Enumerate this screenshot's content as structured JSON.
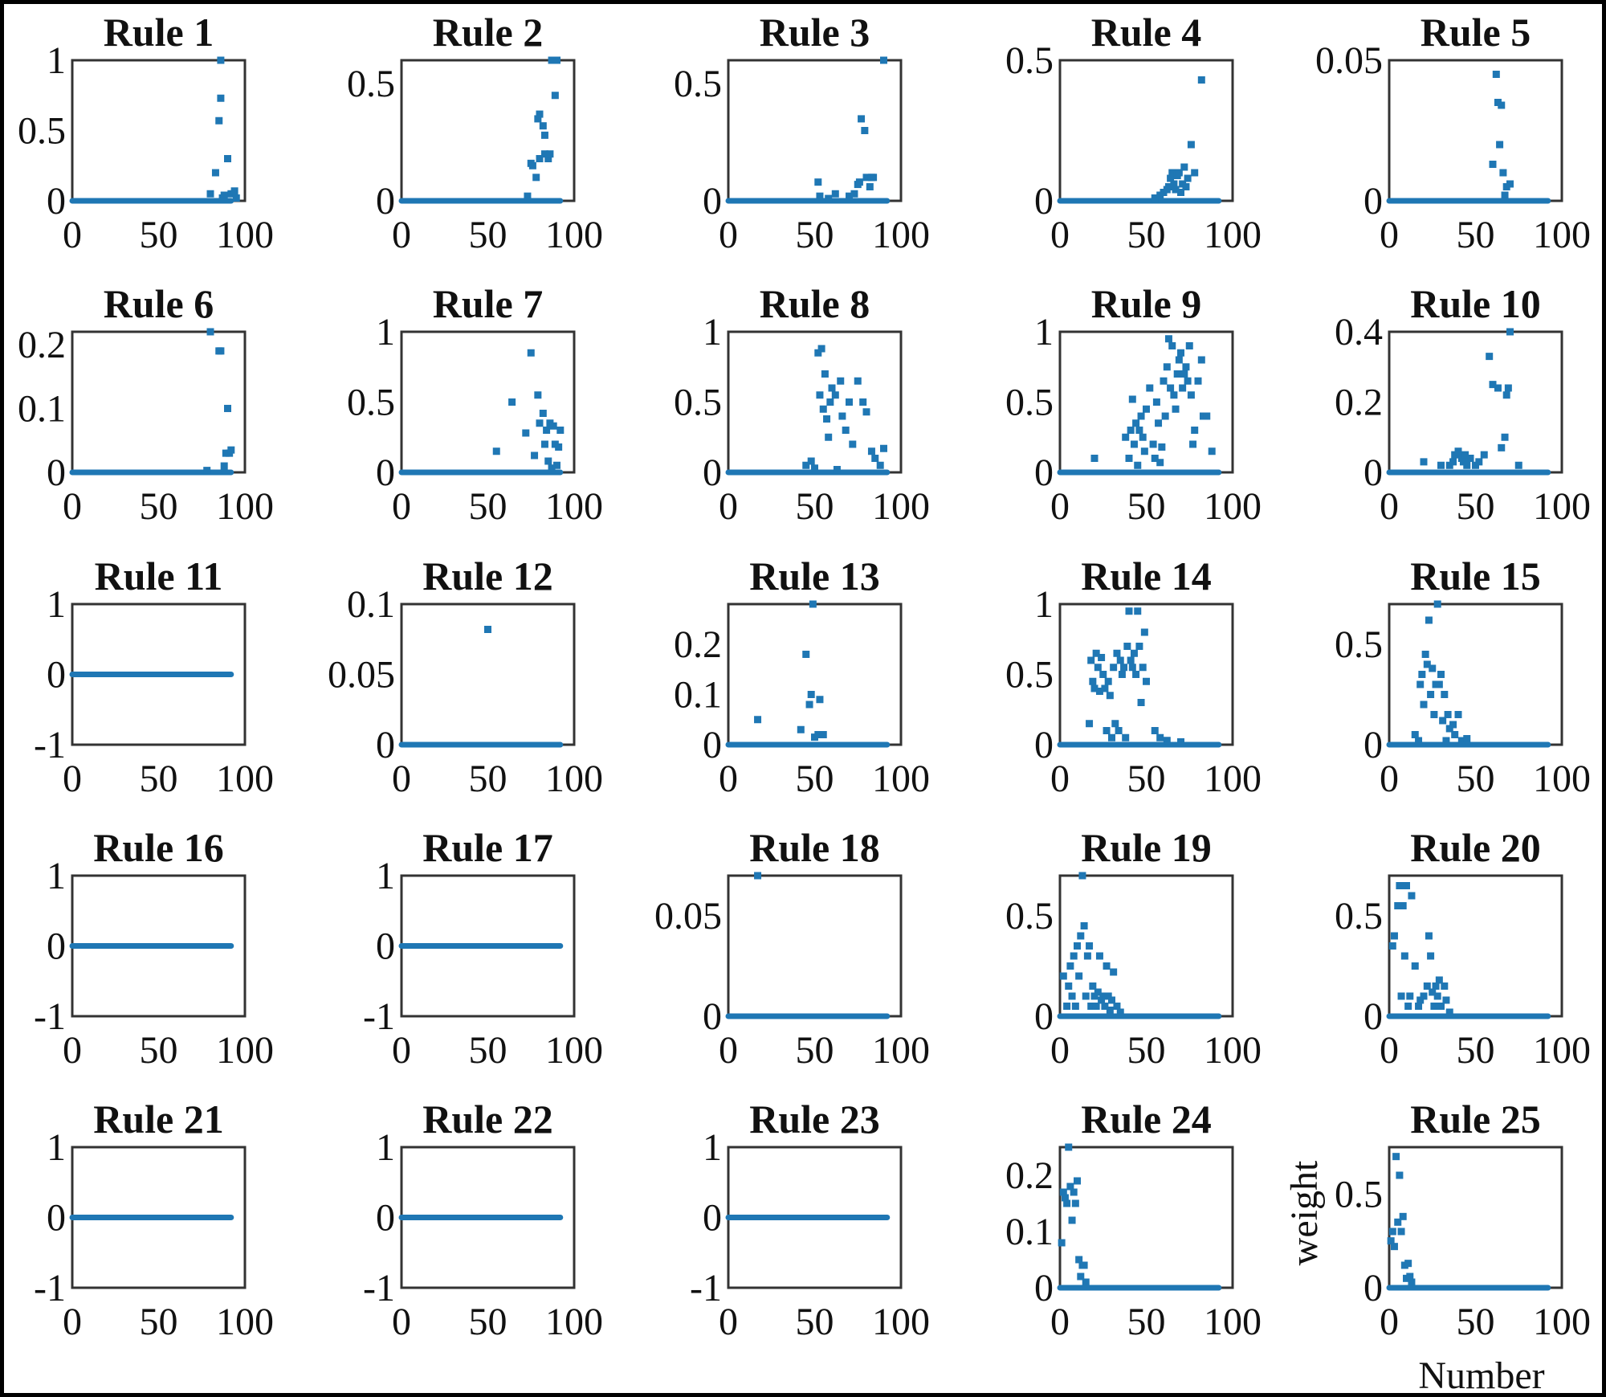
{
  "chart_data": {
    "type": "scatter",
    "layout": "5x5 small multiples",
    "xlabel": "Number",
    "ylabel": "weight",
    "marker_color": "#1f77b4",
    "xlim": [
      0,
      100
    ],
    "xticks": [
      "0",
      "50",
      "100"
    ],
    "panels": [
      {
        "title": "Rule 1",
        "ylim": [
          0,
          1
        ],
        "yticks": [
          {
            "v": 0,
            "t": "0"
          },
          {
            "v": 0.5,
            "t": "0.5"
          },
          {
            "v": 1,
            "t": "1"
          }
        ],
        "x": [
          80,
          83,
          85,
          86,
          86,
          87,
          88,
          90,
          92,
          94,
          95
        ],
        "y": [
          0.05,
          0.2,
          0.57,
          0.73,
          1.0,
          0.02,
          0.04,
          0.3,
          0.05,
          0.07,
          0.02
        ]
      },
      {
        "title": "Rule 2",
        "ylim": [
          0,
          0.6
        ],
        "yticks": [
          {
            "v": 0,
            "t": "0"
          },
          {
            "v": 0.5,
            "t": "0.5"
          }
        ],
        "x": [
          73,
          75,
          76,
          78,
          79,
          80,
          80,
          82,
          83,
          83,
          85,
          86,
          87,
          88,
          89,
          90
        ],
        "y": [
          0.02,
          0.16,
          0.15,
          0.1,
          0.35,
          0.37,
          0.18,
          0.32,
          0.28,
          0.2,
          0.18,
          0.2,
          0.6,
          0.6,
          0.45,
          0.6
        ]
      },
      {
        "title": "Rule 3",
        "ylim": [
          0,
          0.6
        ],
        "yticks": [
          {
            "v": 0,
            "t": "0"
          },
          {
            "v": 0.5,
            "t": "0.5"
          }
        ],
        "x": [
          52,
          53,
          58,
          62,
          70,
          73,
          75,
          76,
          77,
          79,
          80,
          82,
          83,
          84,
          90
        ],
        "y": [
          0.08,
          0.02,
          0.01,
          0.03,
          0.02,
          0.03,
          0.07,
          0.08,
          0.35,
          0.3,
          0.1,
          0.06,
          0.1,
          0.1,
          0.6
        ]
      },
      {
        "title": "Rule 4",
        "ylim": [
          0,
          0.5
        ],
        "yticks": [
          {
            "v": 0,
            "t": "0"
          },
          {
            "v": 0.5,
            "t": "0.5"
          }
        ],
        "x": [
          55,
          58,
          60,
          62,
          63,
          64,
          65,
          66,
          67,
          68,
          69,
          70,
          71,
          72,
          73,
          74,
          76,
          78,
          82
        ],
        "y": [
          0.01,
          0.02,
          0.03,
          0.04,
          0.05,
          0.08,
          0.1,
          0.06,
          0.04,
          0.09,
          0.1,
          0.03,
          0.06,
          0.12,
          0.05,
          0.08,
          0.2,
          0.1,
          0.43
        ]
      },
      {
        "title": "Rule 5",
        "ylim": [
          0,
          0.05
        ],
        "yticks": [
          {
            "v": 0,
            "t": "0"
          },
          {
            "v": 0.05,
            "t": "0.05"
          }
        ],
        "x": [
          60,
          62,
          63,
          64,
          65,
          66,
          67,
          68,
          70
        ],
        "y": [
          0.013,
          0.045,
          0.035,
          0.02,
          0.034,
          0.01,
          0.002,
          0.005,
          0.006
        ]
      },
      {
        "title": "Rule 6",
        "ylim": [
          0,
          0.22
        ],
        "yticks": [
          {
            "v": 0,
            "t": "0"
          },
          {
            "v": 0.1,
            "t": "0.1"
          },
          {
            "v": 0.2,
            "t": "0.2"
          }
        ],
        "x": [
          78,
          80,
          85,
          86,
          88,
          89,
          90,
          91,
          92
        ],
        "y": [
          0.003,
          0.22,
          0.19,
          0.19,
          0.01,
          0.03,
          0.1,
          0.03,
          0.035
        ]
      },
      {
        "title": "Rule 7",
        "ylim": [
          0,
          1
        ],
        "yticks": [
          {
            "v": 0,
            "t": "0"
          },
          {
            "v": 0.5,
            "t": "0.5"
          },
          {
            "v": 1,
            "t": "1"
          }
        ],
        "x": [
          55,
          64,
          72,
          75,
          77,
          79,
          80,
          82,
          83,
          84,
          85,
          86,
          87,
          88,
          89,
          90,
          91,
          92
        ],
        "y": [
          0.15,
          0.5,
          0.28,
          0.85,
          0.12,
          0.55,
          0.35,
          0.42,
          0.2,
          0.3,
          0.08,
          0.35,
          0.03,
          0.33,
          0.2,
          0.05,
          0.18,
          0.3
        ]
      },
      {
        "title": "Rule 8",
        "ylim": [
          0,
          1
        ],
        "yticks": [
          {
            "v": 0,
            "t": "0"
          },
          {
            "v": 0.5,
            "t": "0.5"
          },
          {
            "v": 1,
            "t": "1"
          }
        ],
        "x": [
          45,
          48,
          50,
          52,
          53,
          54,
          55,
          56,
          57,
          58,
          59,
          60,
          62,
          63,
          65,
          66,
          68,
          70,
          72,
          75,
          78,
          80,
          83,
          85,
          88,
          90
        ],
        "y": [
          0.05,
          0.08,
          0.03,
          0.85,
          0.55,
          0.88,
          0.45,
          0.7,
          0.38,
          0.25,
          0.5,
          0.6,
          0.55,
          0.02,
          0.65,
          0.4,
          0.3,
          0.5,
          0.2,
          0.65,
          0.5,
          0.43,
          0.15,
          0.1,
          0.05,
          0.17
        ]
      },
      {
        "title": "Rule 9",
        "ylim": [
          0,
          1
        ],
        "yticks": [
          {
            "v": 0,
            "t": "0"
          },
          {
            "v": 0.5,
            "t": "0.5"
          },
          {
            "v": 1,
            "t": "1"
          }
        ],
        "x": [
          20,
          38,
          40,
          41,
          42,
          43,
          44,
          45,
          46,
          47,
          48,
          49,
          50,
          52,
          54,
          55,
          56,
          57,
          58,
          59,
          60,
          61,
          62,
          63,
          64,
          65,
          66,
          67,
          68,
          69,
          70,
          71,
          72,
          73,
          74,
          75,
          76,
          77,
          78,
          80,
          82,
          83,
          85,
          88
        ],
        "y": [
          0.1,
          0.25,
          0.1,
          0.3,
          0.52,
          0.2,
          0.35,
          0.05,
          0.3,
          0.4,
          0.25,
          0.15,
          0.45,
          0.6,
          0.2,
          0.1,
          0.5,
          0.35,
          0.07,
          0.18,
          0.65,
          0.4,
          0.75,
          0.95,
          0.6,
          0.9,
          0.55,
          0.45,
          0.7,
          0.8,
          0.85,
          0.6,
          0.7,
          0.75,
          0.65,
          0.9,
          0.55,
          0.2,
          0.3,
          0.65,
          0.8,
          0.4,
          0.4,
          0.15
        ]
      },
      {
        "title": "Rule 10",
        "ylim": [
          0,
          0.4
        ],
        "yticks": [
          {
            "v": 0,
            "t": "0"
          },
          {
            "v": 0.2,
            "t": "0.2"
          },
          {
            "v": 0.4,
            "t": "0.4"
          }
        ],
        "x": [
          20,
          30,
          35,
          37,
          38,
          40,
          42,
          43,
          44,
          45,
          47,
          50,
          52,
          55,
          58,
          60,
          63,
          65,
          67,
          68,
          69,
          70,
          75
        ],
        "y": [
          0.03,
          0.02,
          0.02,
          0.03,
          0.05,
          0.06,
          0.04,
          0.03,
          0.05,
          0.02,
          0.04,
          0.02,
          0.03,
          0.05,
          0.33,
          0.25,
          0.24,
          0.07,
          0.1,
          0.22,
          0.24,
          0.4,
          0.02
        ]
      },
      {
        "title": "Rule 11",
        "ylim": [
          -1,
          1
        ],
        "yticks": [
          {
            "v": -1,
            "t": "-1"
          },
          {
            "v": 0,
            "t": "0"
          },
          {
            "v": 1,
            "t": "1"
          }
        ],
        "x": [],
        "y": []
      },
      {
        "title": "Rule 12",
        "ylim": [
          0,
          0.1
        ],
        "yticks": [
          {
            "v": 0,
            "t": "0"
          },
          {
            "v": 0.05,
            "t": "0.05"
          },
          {
            "v": 0.1,
            "t": "0.1"
          }
        ],
        "x": [
          50
        ],
        "y": [
          0.082
        ]
      },
      {
        "title": "Rule 13",
        "ylim": [
          0,
          0.28
        ],
        "yticks": [
          {
            "v": 0,
            "t": "0"
          },
          {
            "v": 0.1,
            "t": "0.1"
          },
          {
            "v": 0.2,
            "t": "0.2"
          }
        ],
        "x": [
          17,
          42,
          45,
          47,
          48,
          49,
          50,
          52,
          53,
          55
        ],
        "y": [
          0.05,
          0.03,
          0.18,
          0.08,
          0.1,
          0.28,
          0.015,
          0.02,
          0.09,
          0.02
        ]
      },
      {
        "title": "Rule 14",
        "ylim": [
          0,
          1
        ],
        "yticks": [
          {
            "v": 0,
            "t": "0"
          },
          {
            "v": 0.5,
            "t": "0.5"
          },
          {
            "v": 1,
            "t": "1"
          }
        ],
        "x": [
          17,
          18,
          19,
          20,
          21,
          22,
          23,
          24,
          25,
          26,
          27,
          28,
          29,
          30,
          31,
          32,
          33,
          34,
          35,
          36,
          37,
          38,
          39,
          40,
          41,
          42,
          43,
          44,
          45,
          46,
          47,
          48,
          49,
          50,
          55,
          58,
          62,
          70
        ],
        "y": [
          0.15,
          0.6,
          0.45,
          0.4,
          0.65,
          0.55,
          0.38,
          0.62,
          0.5,
          0.4,
          0.1,
          0.45,
          0.35,
          0.05,
          0.55,
          0.15,
          0.65,
          0.1,
          0.6,
          0.5,
          0.55,
          0.05,
          0.7,
          0.95,
          0.6,
          0.55,
          0.65,
          0.5,
          0.95,
          0.7,
          0.3,
          0.55,
          0.8,
          0.45,
          0.1,
          0.05,
          0.03,
          0.02
        ]
      },
      {
        "title": "Rule 15",
        "ylim": [
          0,
          0.7
        ],
        "yticks": [
          {
            "v": 0,
            "t": "0"
          },
          {
            "v": 0.5,
            "t": "0.5"
          }
        ],
        "x": [
          15,
          17,
          18,
          19,
          20,
          21,
          22,
          23,
          24,
          25,
          26,
          27,
          28,
          29,
          30,
          31,
          32,
          33,
          34,
          35,
          37,
          38,
          40,
          42,
          45
        ],
        "y": [
          0.05,
          0.02,
          0.3,
          0.35,
          0.2,
          0.45,
          0.4,
          0.62,
          0.25,
          0.38,
          0.15,
          0.3,
          0.7,
          0.3,
          0.35,
          0.12,
          0.25,
          0.02,
          0.15,
          0.08,
          0.1,
          0.05,
          0.15,
          0.02,
          0.03
        ]
      },
      {
        "title": "Rule 16",
        "ylim": [
          -1,
          1
        ],
        "yticks": [
          {
            "v": -1,
            "t": "-1"
          },
          {
            "v": 0,
            "t": "0"
          },
          {
            "v": 1,
            "t": "1"
          }
        ],
        "x": [],
        "y": []
      },
      {
        "title": "Rule 17",
        "ylim": [
          -1,
          1
        ],
        "yticks": [
          {
            "v": -1,
            "t": "-1"
          },
          {
            "v": 0,
            "t": "0"
          },
          {
            "v": 1,
            "t": "1"
          }
        ],
        "x": [],
        "y": []
      },
      {
        "title": "Rule 18",
        "ylim": [
          0,
          0.07
        ],
        "yticks": [
          {
            "v": 0,
            "t": "0"
          },
          {
            "v": 0.05,
            "t": "0.05"
          }
        ],
        "x": [
          17
        ],
        "y": [
          0.07
        ]
      },
      {
        "title": "Rule 19",
        "ylim": [
          0,
          0.7
        ],
        "yticks": [
          {
            "v": 0,
            "t": "0"
          },
          {
            "v": 0.5,
            "t": "0.5"
          }
        ],
        "x": [
          2,
          4,
          5,
          6,
          7,
          8,
          9,
          10,
          11,
          12,
          13,
          14,
          15,
          16,
          17,
          18,
          19,
          20,
          21,
          22,
          23,
          24,
          25,
          26,
          27,
          28,
          29,
          30,
          31,
          33,
          35
        ],
        "y": [
          0.2,
          0.05,
          0.15,
          0.25,
          0.1,
          0.3,
          0.05,
          0.35,
          0.2,
          0.4,
          0.7,
          0.45,
          0.1,
          0.3,
          0.35,
          0.05,
          0.15,
          0.1,
          0.05,
          0.12,
          0.3,
          0.08,
          0.1,
          0.05,
          0.25,
          0.1,
          0.03,
          0.08,
          0.22,
          0.05,
          0.02
        ]
      },
      {
        "title": "Rule 20",
        "ylim": [
          0,
          0.7
        ],
        "yticks": [
          {
            "v": 0,
            "t": "0"
          },
          {
            "v": 0.5,
            "t": "0.5"
          }
        ],
        "x": [
          2,
          3,
          5,
          6,
          7,
          8,
          9,
          10,
          11,
          12,
          13,
          15,
          17,
          18,
          20,
          22,
          23,
          24,
          25,
          26,
          27,
          28,
          29,
          30,
          32,
          33,
          35
        ],
        "y": [
          0.35,
          0.4,
          0.55,
          0.65,
          0.1,
          0.55,
          0.3,
          0.65,
          0.05,
          0.1,
          0.6,
          0.25,
          0.05,
          0.08,
          0.1,
          0.15,
          0.4,
          0.3,
          0.12,
          0.05,
          0.15,
          0.1,
          0.18,
          0.05,
          0.15,
          0.08,
          0.02
        ]
      },
      {
        "title": "Rule 21",
        "ylim": [
          -1,
          1
        ],
        "yticks": [
          {
            "v": -1,
            "t": "-1"
          },
          {
            "v": 0,
            "t": "0"
          },
          {
            "v": 1,
            "t": "1"
          }
        ],
        "x": [],
        "y": []
      },
      {
        "title": "Rule 22",
        "ylim": [
          -1,
          1
        ],
        "yticks": [
          {
            "v": -1,
            "t": "-1"
          },
          {
            "v": 0,
            "t": "0"
          },
          {
            "v": 1,
            "t": "1"
          }
        ],
        "x": [],
        "y": []
      },
      {
        "title": "Rule 23",
        "ylim": [
          -1,
          1
        ],
        "yticks": [
          {
            "v": -1,
            "t": "-1"
          },
          {
            "v": 0,
            "t": "0"
          },
          {
            "v": 1,
            "t": "1"
          }
        ],
        "x": [],
        "y": []
      },
      {
        "title": "Rule 24",
        "ylim": [
          0,
          0.25
        ],
        "yticks": [
          {
            "v": 0,
            "t": "0"
          },
          {
            "v": 0.1,
            "t": "0.1"
          },
          {
            "v": 0.2,
            "t": "0.2"
          }
        ],
        "x": [
          1,
          2,
          3,
          4,
          5,
          6,
          7,
          8,
          9,
          10,
          11,
          12,
          13,
          14,
          15
        ],
        "y": [
          0.08,
          0.17,
          0.16,
          0.15,
          0.25,
          0.18,
          0.12,
          0.17,
          0.15,
          0.19,
          0.05,
          0.02,
          0.04,
          0.04,
          0.01
        ]
      },
      {
        "title": "Rule 25",
        "ylim": [
          0,
          0.75
        ],
        "yticks": [
          {
            "v": 0,
            "t": "0"
          },
          {
            "v": 0.5,
            "t": "0.5"
          }
        ],
        "x": [
          1,
          2,
          3,
          4,
          5,
          6,
          7,
          8,
          9,
          10,
          11,
          12,
          13
        ],
        "y": [
          0.25,
          0.3,
          0.22,
          0.7,
          0.35,
          0.6,
          0.3,
          0.38,
          0.12,
          0.05,
          0.13,
          0.06,
          0.03
        ]
      }
    ]
  }
}
